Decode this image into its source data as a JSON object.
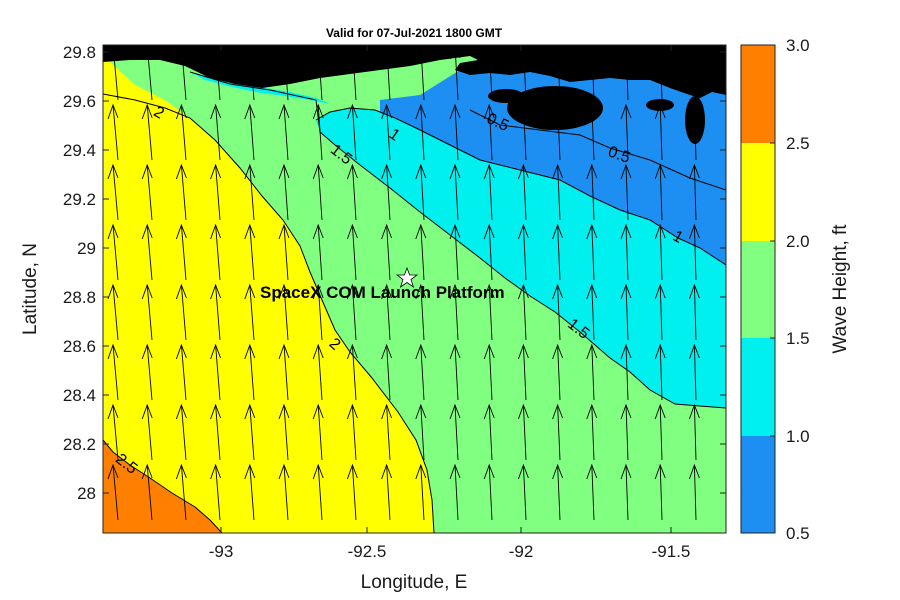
{
  "title": "Valid for 07-Jul-2021 1800 GMT",
  "xlabel": "Longitude, E",
  "ylabel": "Latitude, N",
  "colorbar_label": "Wave Height, ft",
  "annotation": "SpaceX COM Launch Platform",
  "x_ticks": [
    "-93",
    "-92.5",
    "-92",
    "-91.5"
  ],
  "y_ticks": [
    "29.8",
    "29.6",
    "29.4",
    "29.2",
    "29",
    "28.8",
    "28.6",
    "28.4",
    "28.2",
    "28"
  ],
  "colorbar_ticks": [
    "3.0",
    "2.5",
    "2.0",
    "1.5",
    "1.0",
    "0.5"
  ],
  "contour_labels": [
    "2",
    "1",
    "0.5",
    "1.5",
    "0.5",
    "1",
    "2",
    "1.5",
    "2.5"
  ],
  "colors": {
    "band_0_5_1_0": "#1e8ff2",
    "band_1_0_1_5": "#00f0f0",
    "band_1_5_2_0": "#80ff80",
    "band_2_0_2_5": "#ffff00",
    "band_2_5_3_0": "#ff8000",
    "land": "#000000"
  },
  "chart_data": {
    "type": "heatmap",
    "title": "Valid for 07-Jul-2021 1800 GMT",
    "xlabel": "Longitude, E",
    "ylabel": "Latitude, N",
    "xlim": [
      -93.35,
      -91.35
    ],
    "ylim": [
      27.85,
      29.85
    ],
    "colorbar": {
      "label": "Wave Height, ft",
      "range": [
        0.5,
        3.0
      ],
      "levels": [
        0.5,
        1.0,
        1.5,
        2.0,
        2.5,
        3.0
      ]
    },
    "contour_levels": [
      0.5,
      1,
      1.5,
      2,
      2.5
    ],
    "marker": {
      "label": "SpaceX COM Launch Platform",
      "lon": -92.35,
      "lat": 28.89,
      "symbol": "star"
    },
    "wave_direction": "arrows pointing roughly north (slightly north-northwest) across domain"
  }
}
